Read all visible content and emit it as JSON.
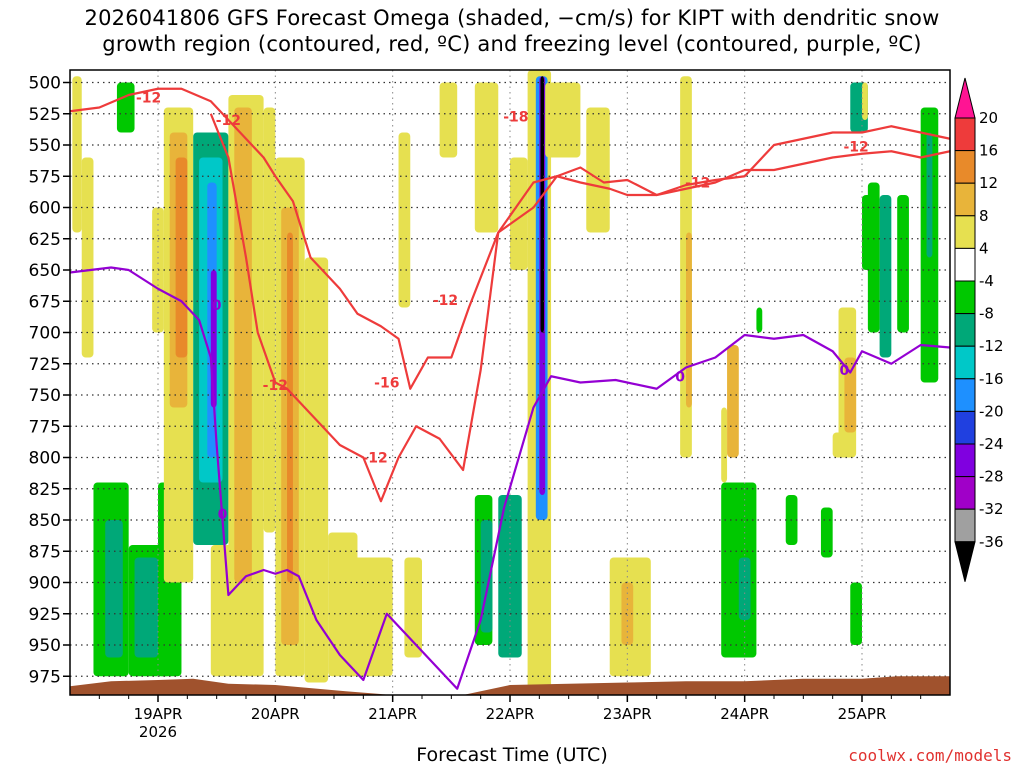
{
  "title_line1": "2026041806 GFS Forecast Omega (shaded, −cm/s) for KIPT with dendritic snow",
  "title_line2": "growth region (contoured, red, ºC) and freezing level (contoured, purple, ºC)",
  "xlabel": "Forecast Time (UTC)",
  "credit": "coolwx.com/models",
  "colors": {
    "terrain": "#a0522d",
    "freezing_line": "#9400d3",
    "dgz_line": "#ee3b3b",
    "grid": "#333333"
  },
  "chart_data": {
    "type": "heatmap",
    "x_axis": {
      "ticks": [
        "19APR",
        "20APR",
        "21APR",
        "22APR",
        "23APR",
        "24APR",
        "25APR"
      ],
      "year_label": "2026",
      "range_days": [
        18.25,
        25.75
      ]
    },
    "y_axis": {
      "ticks": [
        500,
        525,
        550,
        575,
        600,
        625,
        650,
        675,
        700,
        725,
        750,
        775,
        800,
        825,
        850,
        875,
        900,
        925,
        950,
        975
      ],
      "range": [
        490,
        990
      ],
      "units": "hPa",
      "reversed": true
    },
    "colorbar": {
      "labels": [
        20,
        16,
        12,
        8,
        4,
        -4,
        -8,
        -12,
        -16,
        -20,
        -24,
        -28,
        -32,
        -36
      ],
      "colors": [
        "#ff1493",
        "#ee3b3b",
        "#e88a2a",
        "#e8b43a",
        "#e6e050",
        "#ffffff",
        "#00c800",
        "#00a878",
        "#00c8c8",
        "#1e90ff",
        "#2040e0",
        "#8000e0",
        "#a000c8",
        "#a0a0a0",
        "#000000"
      ]
    },
    "freezing_level": {
      "label": "0",
      "x": [
        18.25,
        18.6,
        18.75,
        19.0,
        19.2,
        19.35,
        19.45,
        19.5,
        19.55,
        19.6,
        19.75,
        19.9,
        20.0,
        20.1,
        20.2,
        20.35,
        20.55,
        20.75,
        20.95,
        21.0,
        21.25,
        21.55,
        21.75,
        21.95,
        22.2,
        22.35,
        22.6,
        22.9,
        23.25,
        23.5,
        23.75,
        24.0,
        24.25,
        24.5,
        24.75,
        24.9,
        25.0,
        25.25,
        25.5,
        25.75
      ],
      "y": [
        652,
        648,
        650,
        665,
        675,
        690,
        720,
        790,
        850,
        910,
        895,
        890,
        893,
        890,
        895,
        930,
        958,
        978,
        925,
        930,
        955,
        985,
        930,
        840,
        760,
        735,
        740,
        738,
        745,
        728,
        720,
        702,
        705,
        702,
        715,
        732,
        715,
        725,
        710,
        712
      ]
    },
    "dgz_lower_minus12": {
      "label": "-12",
      "x": [
        18.25,
        18.5,
        18.75,
        19.0,
        19.2,
        19.45,
        19.6,
        19.75,
        19.9,
        20.0,
        20.15,
        20.3,
        20.55,
        20.7,
        20.9,
        21.05,
        21.15,
        21.3,
        21.5,
        21.65,
        21.9,
        22.05,
        22.2,
        22.4,
        22.6,
        22.85,
        23.0,
        23.25,
        23.5,
        23.75,
        24.0,
        24.25,
        24.5,
        24.75,
        25.0,
        25.25,
        25.5,
        25.75
      ],
      "y": [
        523,
        520,
        510,
        505,
        505,
        515,
        530,
        545,
        560,
        575,
        595,
        640,
        665,
        685,
        695,
        705,
        745,
        720,
        720,
        680,
        620,
        610,
        600,
        575,
        580,
        585,
        590,
        590,
        585,
        580,
        570,
        570,
        565,
        560,
        557,
        555,
        560,
        555
      ]
    },
    "dgz_upper_minus12": {
      "label": "-12",
      "x": [
        19.45,
        19.6,
        19.75,
        19.85,
        20.0,
        20.1,
        20.3,
        20.55,
        20.75,
        20.9,
        21.05,
        21.2,
        21.4,
        21.6,
        21.75,
        21.9,
        22.05,
        22.2,
        22.4,
        22.6,
        22.8,
        23.0,
        23.25,
        23.5,
        23.75,
        24.0,
        24.25,
        24.5,
        24.75,
        25.0,
        25.25,
        25.5,
        25.75
      ],
      "y": [
        525,
        560,
        640,
        700,
        740,
        745,
        765,
        790,
        800,
        835,
        800,
        775,
        785,
        810,
        730,
        620,
        600,
        580,
        575,
        568,
        580,
        578,
        590,
        582,
        578,
        575,
        550,
        545,
        540,
        540,
        535,
        540,
        545
      ]
    },
    "annotations": [
      {
        "text": "-12",
        "x": 18.92,
        "y": 512
      },
      {
        "text": "-12",
        "x": 19.6,
        "y": 530
      },
      {
        "text": "-12",
        "x": 20.0,
        "y": 742
      },
      {
        "text": "-16",
        "x": 20.95,
        "y": 740
      },
      {
        "text": "-12",
        "x": 20.85,
        "y": 800
      },
      {
        "text": "-12",
        "x": 21.45,
        "y": 674
      },
      {
        "text": "-18",
        "x": 22.05,
        "y": 527
      },
      {
        "text": "-12",
        "x": 23.6,
        "y": 580
      },
      {
        "text": "-12",
        "x": 24.95,
        "y": 551
      },
      {
        "text": "0",
        "x": 19.5,
        "y": 678
      },
      {
        "text": "0",
        "x": 19.55,
        "y": 845
      },
      {
        "text": "0",
        "x": 23.45,
        "y": 735
      },
      {
        "text": "0",
        "x": 24.85,
        "y": 730
      }
    ]
  }
}
